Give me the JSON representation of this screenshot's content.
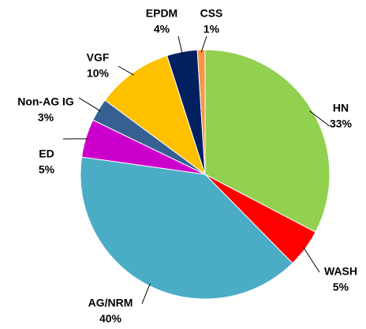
{
  "chart_data": {
    "type": "pie",
    "categories": [
      "HN",
      "WASH",
      "AG/NRM",
      "ED",
      "Non-AG IG",
      "VGF",
      "EPDM",
      "CSS"
    ],
    "values": [
      33,
      5,
      40,
      5,
      3,
      10,
      4,
      1
    ],
    "value_labels": [
      "33%",
      "5%",
      "40%",
      "5%",
      "3%",
      "10%",
      "4%",
      "1%"
    ],
    "colors": [
      "#92d050",
      "#ff0000",
      "#4bacc6",
      "#cc00cc",
      "#366092",
      "#ffc000",
      "#002060",
      "#f79646"
    ]
  }
}
